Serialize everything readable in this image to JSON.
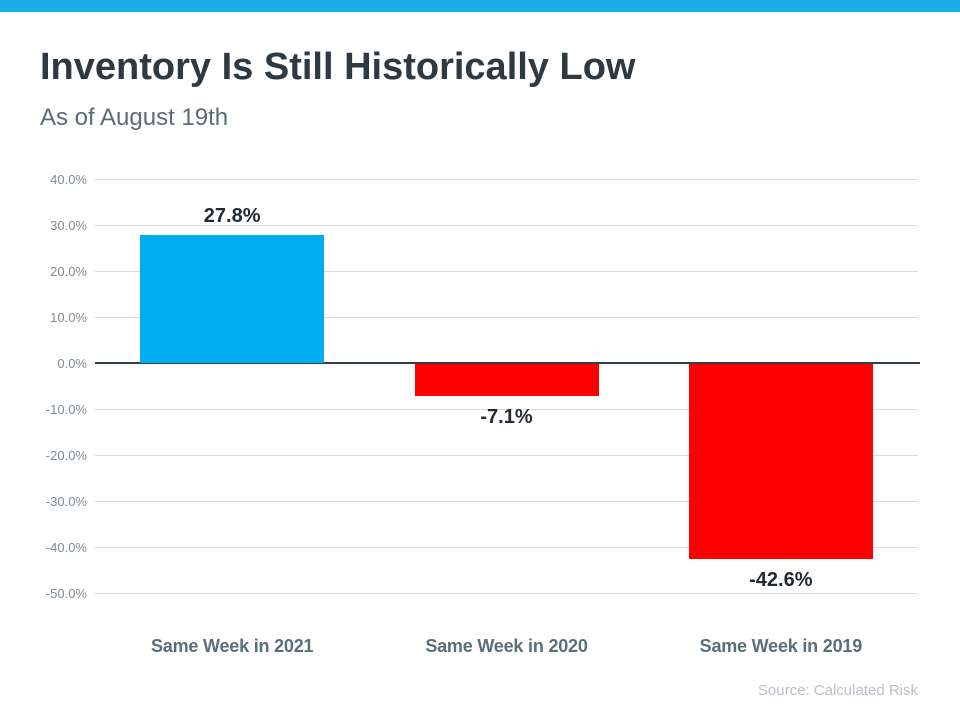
{
  "page": {
    "accent_color": "#18ADE9",
    "background_color": "#FFFFFF"
  },
  "header": {
    "title": "Inventory Is Still Historically Low",
    "subtitle": "As of August 19th"
  },
  "source": "Source: Calculated Risk",
  "chart_data": {
    "type": "bar",
    "title": "Inventory Is Still Historically Low",
    "subtitle": "As of August 19th",
    "categories": [
      "Same Week in 2021",
      "Same Week in 2020",
      "Same Week in 2019"
    ],
    "values": [
      27.8,
      -7.1,
      -42.6
    ],
    "value_labels": [
      "27.8%",
      "-7.1%",
      "-42.6%"
    ],
    "bar_colors": [
      "#00AEEF",
      "#FF0000",
      "#FF0000"
    ],
    "xlabel": "",
    "ylabel": "",
    "ylim": [
      -50,
      40
    ],
    "ytick_step": 10,
    "ytick_labels": [
      "40.0%",
      "30.0%",
      "20.0%",
      "10.0%",
      "0.0%",
      "-10.0%",
      "-20.0%",
      "-30.0%",
      "-40.0%",
      "-50.0%"
    ],
    "grid": true,
    "legend": "none",
    "zero_axis_color": "#333F48",
    "gridline_color": "#D9DCDE",
    "source": "Source: Calculated Risk"
  }
}
